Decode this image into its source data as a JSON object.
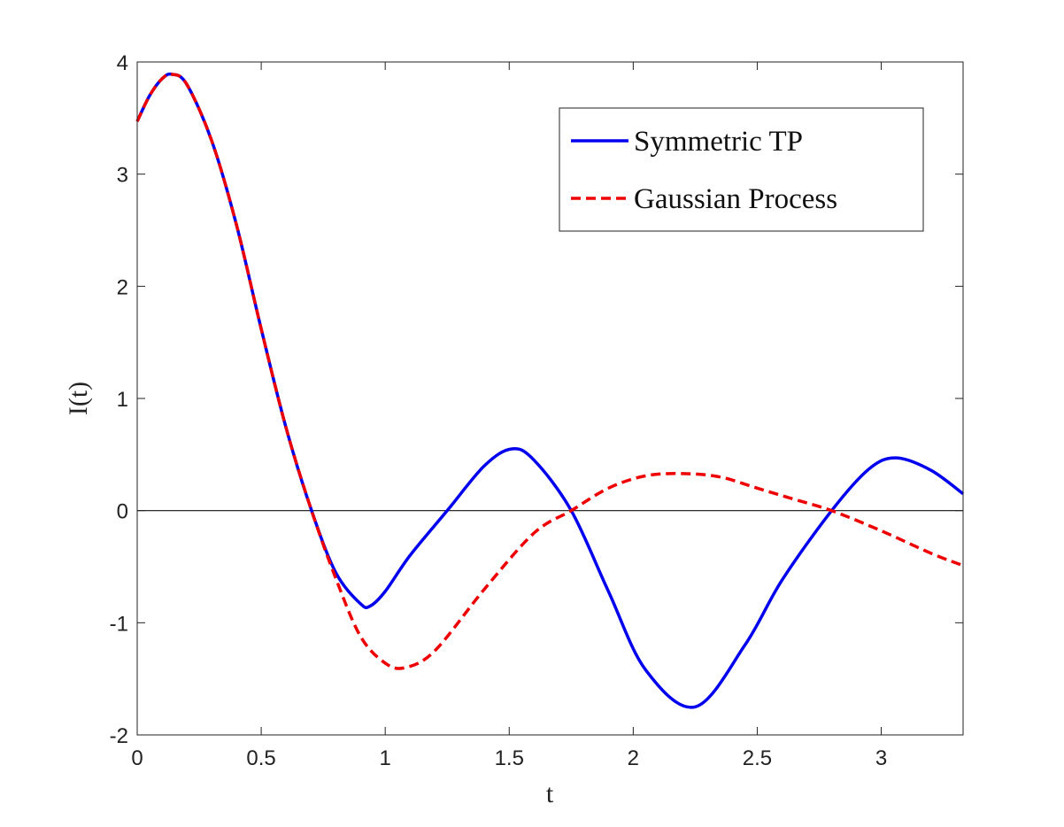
{
  "chart_data": {
    "type": "line",
    "xlabel": "t",
    "ylabel": "I(t)",
    "xlim": [
      0,
      3.33
    ],
    "ylim": [
      -2,
      4
    ],
    "xticks": [
      0,
      0.5,
      1,
      1.5,
      2,
      2.5,
      3
    ],
    "xtick_labels": [
      "0",
      "0.5",
      "1",
      "1.5",
      "2",
      "2.5",
      "3"
    ],
    "yticks": [
      -2,
      -1,
      0,
      1,
      2,
      3,
      4
    ],
    "ytick_labels": [
      "-2",
      "-1",
      "0",
      "1",
      "2",
      "3",
      "4"
    ],
    "grid": false,
    "zero_line": true,
    "legend_position": "top-right",
    "series": [
      {
        "name": "Symmetric TP",
        "color": "#0000ee",
        "style": "solid",
        "x": [
          0,
          0.05,
          0.1,
          0.14,
          0.2,
          0.3,
          0.4,
          0.5,
          0.6,
          0.7,
          0.8,
          0.9,
          0.94,
          1.0,
          1.1,
          1.25,
          1.4,
          1.51,
          1.6,
          1.75,
          1.9,
          2.05,
          2.25,
          2.45,
          2.6,
          2.8,
          2.95,
          3.06,
          3.2,
          3.33
        ],
        "y": [
          3.47,
          3.7,
          3.85,
          3.89,
          3.8,
          3.3,
          2.55,
          1.62,
          0.74,
          0.02,
          -0.55,
          -0.83,
          -0.85,
          -0.72,
          -0.4,
          0.0,
          0.4,
          0.55,
          0.45,
          0.0,
          -0.72,
          -1.42,
          -1.75,
          -1.2,
          -0.62,
          0.0,
          0.37,
          0.47,
          0.36,
          0.15
        ]
      },
      {
        "name": "Gaussian Process",
        "color": "#ee0000",
        "style": "dashed",
        "x": [
          0,
          0.05,
          0.1,
          0.14,
          0.2,
          0.3,
          0.4,
          0.5,
          0.6,
          0.7,
          0.8,
          0.9,
          1.0,
          1.08,
          1.2,
          1.4,
          1.6,
          1.75,
          1.9,
          2.05,
          2.2,
          2.35,
          2.5,
          2.65,
          2.8,
          3.0,
          3.2,
          3.33
        ],
        "y": [
          3.47,
          3.7,
          3.85,
          3.89,
          3.8,
          3.3,
          2.55,
          1.62,
          0.74,
          0.02,
          -0.6,
          -1.12,
          -1.36,
          -1.4,
          -1.25,
          -0.7,
          -0.2,
          0.0,
          0.2,
          0.31,
          0.33,
          0.3,
          0.2,
          0.1,
          0.0,
          -0.18,
          -0.38,
          -0.49
        ]
      }
    ]
  }
}
